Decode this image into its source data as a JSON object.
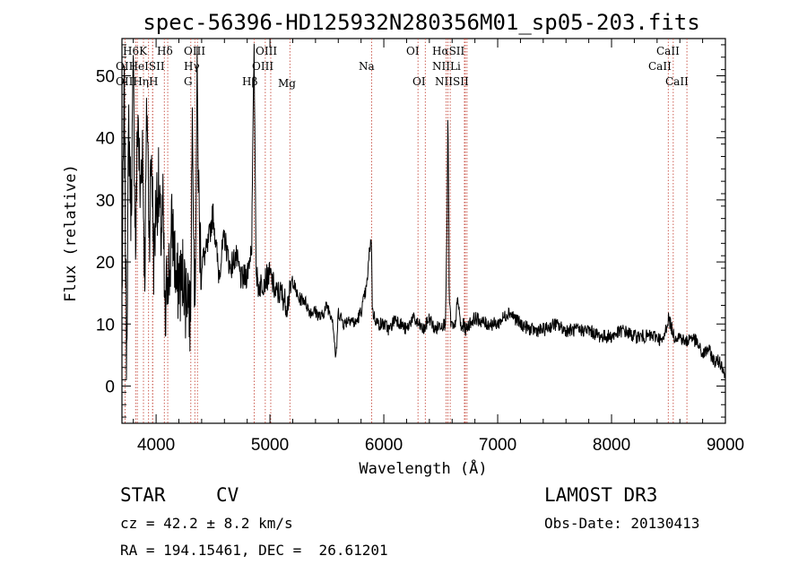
{
  "chart_data": {
    "type": "line",
    "title": "spec-56396-HD125932N280356M01_sp05-203.fits",
    "xlabel": "Wavelength (Å)",
    "ylabel": "Flux (relative)",
    "xlim": [
      3700,
      9000
    ],
    "ylim": [
      -6,
      56
    ],
    "xticks": [
      4000,
      5000,
      6000,
      7000,
      8000,
      9000
    ],
    "yticks": [
      0,
      10,
      20,
      30,
      40,
      50
    ],
    "grid": false,
    "series": [
      {
        "name": "flux",
        "x": [
          3700,
          3720,
          3740,
          3760,
          3780,
          3800,
          3820,
          3840,
          3860,
          3880,
          3900,
          3920,
          3940,
          3960,
          3980,
          4000,
          4020,
          4040,
          4060,
          4080,
          4100,
          4120,
          4140,
          4160,
          4180,
          4200,
          4220,
          4240,
          4260,
          4280,
          4300,
          4320,
          4340,
          4360,
          4380,
          4400,
          4450,
          4500,
          4550,
          4600,
          4650,
          4700,
          4750,
          4800,
          4840,
          4860,
          4880,
          4900,
          4950,
          5000,
          5050,
          5100,
          5150,
          5200,
          5250,
          5300,
          5350,
          5400,
          5450,
          5500,
          5550,
          5580,
          5600,
          5650,
          5700,
          5750,
          5800,
          5850,
          5875,
          5890,
          5900,
          5920,
          5950,
          6000,
          6050,
          6100,
          6150,
          6200,
          6250,
          6300,
          6350,
          6400,
          6450,
          6500,
          6540,
          6555,
          6563,
          6575,
          6590,
          6620,
          6650,
          6680,
          6700,
          6720,
          6750,
          6800,
          6900,
          7000,
          7050,
          7100,
          7200,
          7300,
          7400,
          7500,
          7600,
          7700,
          7800,
          7900,
          8000,
          8100,
          8200,
          8300,
          8400,
          8450,
          8500,
          8550,
          8600,
          8650,
          8700,
          8750,
          8800,
          8850,
          8900,
          8950,
          8980,
          9000
        ],
        "y": [
          14,
          48,
          5,
          42,
          28,
          50,
          22,
          45,
          30,
          40,
          18,
          46,
          25,
          38,
          20,
          30,
          32,
          24,
          28,
          8,
          20,
          18,
          26,
          22,
          15,
          18,
          16,
          19,
          14,
          17,
          10,
          46,
          12,
          48,
          25,
          20,
          22,
          28,
          18,
          24,
          19,
          21,
          17,
          18,
          23,
          55,
          18,
          16,
          17,
          18,
          15,
          15,
          13,
          17,
          14,
          14,
          12,
          12,
          11,
          13,
          11,
          4,
          12,
          10,
          11,
          10,
          12,
          16,
          22,
          24,
          12,
          11,
          10,
          10,
          9,
          11,
          10,
          9,
          11,
          10,
          9,
          11,
          9,
          10,
          10,
          25,
          45,
          14,
          10,
          9,
          14,
          9,
          10,
          9,
          10,
          11,
          10,
          10,
          11,
          12,
          10,
          9,
          9,
          10,
          9,
          9,
          9,
          8,
          8,
          9,
          8,
          8,
          8,
          7,
          11,
          8,
          8,
          7,
          8,
          7,
          5,
          6,
          4,
          4,
          3,
          1
        ]
      }
    ],
    "lines": [
      {
        "name": "Hε",
        "wl": 3970
      },
      {
        "name": "K",
        "wl": 3934
      },
      {
        "name": "H",
        "wl": 3969
      },
      {
        "name": "OII",
        "wl": 3727
      },
      {
        "name": "Hη",
        "wl": 3835
      },
      {
        "name": "Hζ",
        "wl": 3889
      },
      {
        "name": "HeI",
        "wl": 3820
      },
      {
        "name": "Hδ",
        "wl": 4102
      },
      {
        "name": "SII",
        "wl": 4072
      },
      {
        "name": "OIII",
        "wl": 4363
      },
      {
        "name": "Hγ",
        "wl": 4340
      },
      {
        "name": "G",
        "wl": 4305
      },
      {
        "name": "Hβ",
        "wl": 4861
      },
      {
        "name": "OIII",
        "wl": 4959
      },
      {
        "name": "OIII",
        "wl": 5007
      },
      {
        "name": "Mg",
        "wl": 5175
      },
      {
        "name": "Na",
        "wl": 5893
      },
      {
        "name": "OI",
        "wl": 6300
      },
      {
        "name": "OI",
        "wl": 6364
      },
      {
        "name": "Hα",
        "wl": 6563
      },
      {
        "name": "NII",
        "wl": 6548
      },
      {
        "name": "NII",
        "wl": 6583
      },
      {
        "name": "SII",
        "wl": 6716
      },
      {
        "name": "SII",
        "wl": 6731
      },
      {
        "name": "Li",
        "wl": 6708
      },
      {
        "name": "CaII",
        "wl": 8498
      },
      {
        "name": "CaII",
        "wl": 8542
      },
      {
        "name": "CaII",
        "wl": 8662
      }
    ]
  },
  "labels": {
    "h_top": "Hδ",
    "hk": "H6K",
    "oiii_1": "OIII",
    "oiii_2": "OIII",
    "oi_top": "OI",
    "ha_sii": "HαSII",
    "ca_top": "CaII",
    "ohei_sii": "OIHeISII",
    "hgamma": "Hγ",
    "oiii_3": "OIII",
    "na": "Na",
    "nii_li": "NIILi",
    "ca_mid": "CaII",
    "ohh": "OIIHηH",
    "g": "G",
    "hbeta": "Hβ",
    "mg": "Mg",
    "oi_low": "OI",
    "nii_sii": "NIISII",
    "ca_low": "CaII"
  },
  "info": {
    "class": "STAR",
    "subclass": "CV",
    "survey": "LAMOST DR3",
    "cz": "cz = 42.2 ± 8.2 km/s",
    "obs_date": "Obs-Date: 20130413",
    "radec": "RA = 194.15461, DEC =  26.61201"
  }
}
